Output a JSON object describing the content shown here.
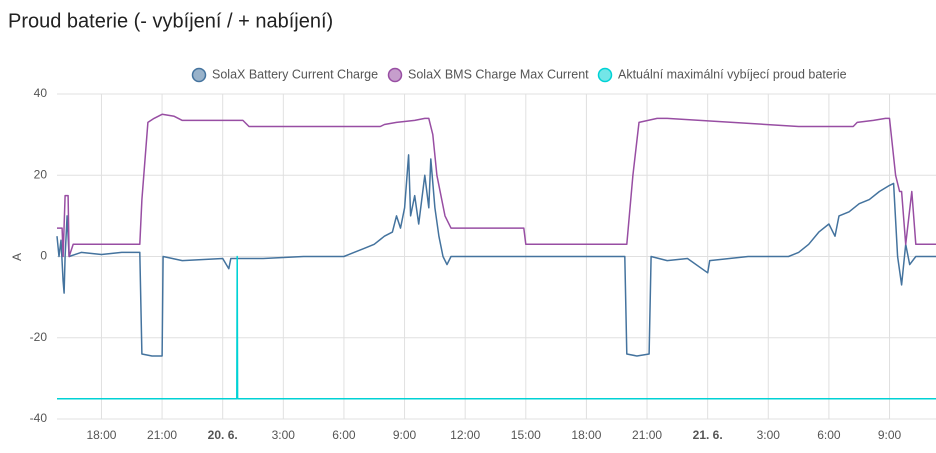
{
  "chart_data": {
    "type": "line",
    "title": "Proud baterie (- vybíjení / + nabíjení)",
    "y_label": "A",
    "xlim": [
      15.8,
      59.3
    ],
    "ylim": [
      -40,
      40
    ],
    "yticks": [
      -40,
      -20,
      0,
      20,
      40
    ],
    "xticks": [
      {
        "value": 18,
        "label": "18:00"
      },
      {
        "value": 21,
        "label": "21:00"
      },
      {
        "value": 24,
        "label": "20. 6."
      },
      {
        "value": 27,
        "label": "3:00"
      },
      {
        "value": 30,
        "label": "6:00"
      },
      {
        "value": 33,
        "label": "9:00"
      },
      {
        "value": 36,
        "label": "12:00"
      },
      {
        "value": 39,
        "label": "15:00"
      },
      {
        "value": 42,
        "label": "18:00"
      },
      {
        "value": 45,
        "label": "21:00"
      },
      {
        "value": 48,
        "label": "21. 6."
      },
      {
        "value": 51,
        "label": "3:00"
      },
      {
        "value": 54,
        "label": "6:00"
      },
      {
        "value": 57,
        "label": "9:00"
      }
    ],
    "grid": true,
    "series": [
      {
        "name": "SolaX Battery Current Charge",
        "color": "#44739e",
        "x": [
          15.8,
          15.9,
          16.0,
          16.1,
          16.15,
          16.2,
          16.3,
          16.4,
          17,
          18,
          19,
          19.9,
          20.0,
          20.5,
          21.0,
          21.05,
          22,
          24,
          24.3,
          24.4,
          26,
          28,
          30,
          30.5,
          31,
          31.5,
          32,
          32.4,
          32.6,
          32.8,
          33,
          33.2,
          33.3,
          33.5,
          33.7,
          34,
          34.2,
          34.3,
          34.5,
          34.7,
          34.9,
          35.1,
          35.3,
          38,
          43.9,
          44,
          44.5,
          45.1,
          45.2,
          46,
          47,
          48,
          48.1,
          50,
          52,
          52.5,
          53,
          53.5,
          54,
          54.3,
          54.5,
          55,
          55.5,
          56,
          56.5,
          57,
          57.2,
          57.4,
          57.6,
          57.8,
          58,
          58.3,
          59.3
        ],
        "values": [
          5,
          0,
          4,
          -6,
          -9,
          0,
          10,
          0,
          1,
          0.5,
          1,
          1,
          -24,
          -24.5,
          -24.5,
          0,
          -1,
          -0.5,
          -3,
          -0.5,
          -0.5,
          0,
          0,
          1,
          2,
          3,
          5,
          6,
          10,
          7,
          12,
          25,
          10,
          15,
          8,
          20,
          12,
          24,
          12,
          5,
          0,
          -2,
          0,
          0,
          0,
          -24,
          -24.5,
          -24,
          0,
          -1,
          -0.5,
          -4,
          -1,
          0,
          0,
          1,
          3,
          6,
          8,
          5,
          10,
          11,
          13,
          14,
          16,
          17.5,
          18,
          0,
          -7,
          3,
          -2,
          0,
          0
        ]
      },
      {
        "name": "SolaX BMS Charge Max Current",
        "color": "#984ea3",
        "x": [
          15.8,
          16.05,
          16.1,
          16.2,
          16.35,
          16.4,
          16.6,
          17,
          19.9,
          20,
          20.3,
          20.6,
          21,
          21.6,
          22,
          25,
          25.3,
          31.8,
          32,
          32.6,
          33.5,
          34,
          34.2,
          34.4,
          34.6,
          35,
          35.3,
          36,
          37,
          38.9,
          39,
          43.9,
          44,
          44.3,
          44.6,
          45.5,
          46,
          52.5,
          55.2,
          55.4,
          56.2,
          56.8,
          57,
          57.3,
          57.5,
          57.6,
          57.8,
          58.1,
          58.3,
          58.5,
          59.3
        ],
        "values": [
          7,
          7,
          0,
          15,
          15,
          0,
          3,
          3,
          3,
          14,
          33,
          34,
          35,
          34.5,
          33.5,
          33.5,
          32,
          32,
          32.5,
          33,
          33.5,
          34,
          34,
          30,
          20,
          10,
          7,
          7,
          7,
          7,
          3,
          3,
          3,
          20,
          33,
          34,
          34,
          32,
          32,
          33,
          33.5,
          34,
          34,
          20,
          16,
          16,
          3,
          16,
          3,
          3,
          3
        ]
      },
      {
        "name": "Aktuální maximální vybíjecí proud baterie",
        "color": "#00d2d5",
        "x": [
          15.8,
          24.7,
          24.72,
          24.74,
          59.3
        ],
        "values": [
          -35,
          -35,
          0,
          -35,
          -35
        ]
      }
    ]
  }
}
